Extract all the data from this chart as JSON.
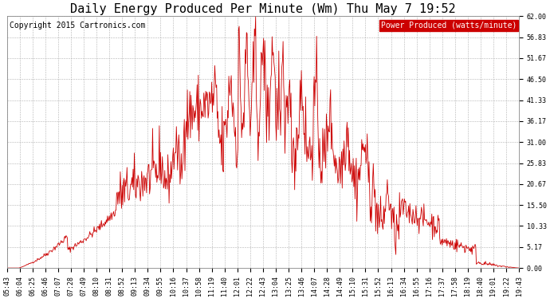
{
  "title": "Daily Energy Produced Per Minute (Wm) Thu May 7 19:52",
  "copyright": "Copyright 2015 Cartronics.com",
  "legend_label": "Power Produced (watts/minute)",
  "legend_bg": "#cc0000",
  "legend_fg": "#ffffff",
  "line_color": "#cc0000",
  "bg_color": "#ffffff",
  "plot_bg": "#ffffff",
  "grid_color": "#aaaaaa",
  "ylim": [
    0,
    62.0
  ],
  "yticks": [
    0.0,
    5.17,
    10.33,
    15.5,
    20.67,
    25.83,
    31.0,
    36.17,
    41.33,
    46.5,
    51.67,
    56.83,
    62.0
  ],
  "xtick_labels": [
    "05:43",
    "06:04",
    "06:25",
    "06:46",
    "07:07",
    "07:28",
    "07:49",
    "08:10",
    "08:31",
    "08:52",
    "09:13",
    "09:34",
    "09:55",
    "10:16",
    "10:37",
    "10:58",
    "11:19",
    "11:40",
    "12:01",
    "12:22",
    "12:43",
    "13:04",
    "13:25",
    "13:46",
    "14:07",
    "14:28",
    "14:49",
    "15:10",
    "15:31",
    "15:52",
    "16:13",
    "16:34",
    "16:55",
    "17:16",
    "17:37",
    "17:58",
    "18:19",
    "18:40",
    "19:01",
    "19:22",
    "19:43"
  ],
  "title_fontsize": 11,
  "tick_fontsize": 6,
  "copyright_fontsize": 7,
  "legend_fontsize": 7
}
